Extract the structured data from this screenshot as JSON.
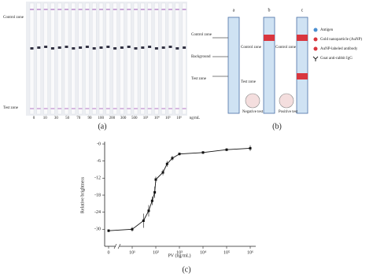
{
  "panel_a": {
    "label": "(a)",
    "control_zone": "Control zone",
    "test_zone": "Test zone",
    "strip_labels": [
      "0",
      "10",
      "30",
      "50",
      "70",
      "90",
      "100",
      "200",
      "300",
      "500",
      "10³",
      "10⁴",
      "10⁵",
      "10⁶",
      "ng/mL"
    ]
  },
  "panel_b": {
    "label": "(b)",
    "columns": [
      "a",
      "b",
      "c"
    ],
    "left_control_zone": "Control zone",
    "background": "Background",
    "left_test_zone": "Test zone",
    "b_control_zone": "Control zone",
    "b_test_zone": "Test zone",
    "negative": "Negative test",
    "c_control_zone": "Control zone",
    "positive": "Positive test",
    "legend": [
      "Antigen",
      "Gold nanoparticle (AuNP)",
      "AuNP-labeled antibody",
      "Goat anti-rabbit IgG"
    ]
  },
  "panel_c": {
    "label": "(c)"
  },
  "chart_data": {
    "type": "line",
    "xlabel": "PV (ng/mL)",
    "ylabel": "Relative brightness",
    "xscale": "log",
    "color": "#111",
    "x": [
      0,
      10,
      30,
      50,
      70,
      90,
      100,
      200,
      300,
      500,
      1000,
      10000,
      100000,
      1000000
    ],
    "values": [
      -30.5,
      -30,
      -27,
      -23.5,
      -20,
      -17,
      -12.5,
      -10,
      -7,
      -5,
      -3.5,
      -3,
      -2,
      -1.5
    ],
    "errors": [
      0.5,
      0.8,
      2.5,
      2,
      1.5,
      2,
      1,
      1,
      1,
      0.8,
      0.5,
      0.5,
      0.5,
      1
    ],
    "xlim": [
      1,
      1000000
    ],
    "ylim": [
      -36,
      0
    ],
    "xticks": [
      0,
      {
        "value": 10,
        "label": "10¹"
      },
      {
        "value": 100,
        "label": "10²"
      },
      {
        "value": 1000,
        "label": "10³"
      },
      {
        "value": 10000,
        "label": "10⁴"
      },
      {
        "value": 100000,
        "label": "10⁵"
      },
      {
        "value": 1000000,
        "label": "10⁶"
      }
    ],
    "yticks": [
      {
        "value": 0,
        "label": "-0"
      },
      -6,
      -12,
      -18,
      -24,
      -30
    ]
  }
}
